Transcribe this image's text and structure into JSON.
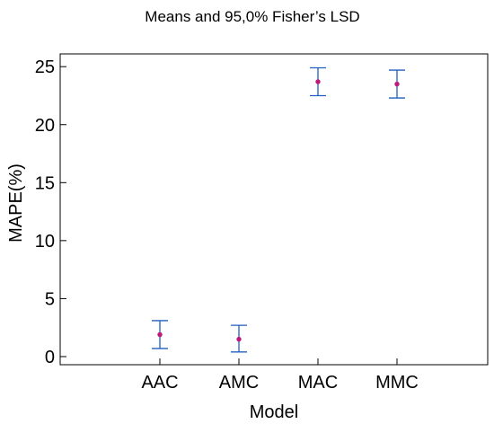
{
  "chart_data": {
    "type": "scatter",
    "title": "Means and 95,0% Fisher’s LSD",
    "xlabel": "Model",
    "ylabel": "MAPE(%)",
    "categories": [
      "AAC",
      "AMC",
      "MAC",
      "MMC"
    ],
    "series": [
      {
        "means": [
          1.9,
          1.5,
          23.7,
          23.5
        ],
        "lower": [
          0.7,
          0.4,
          22.5,
          22.3
        ],
        "upper": [
          3.1,
          2.7,
          24.9,
          24.7
        ]
      }
    ],
    "yticks": [
      0,
      5,
      10,
      15,
      20,
      25
    ],
    "ylim": [
      -0.7,
      26.1
    ],
    "grid": false,
    "colors": {
      "errorbar": "#1f5fbf",
      "mean": "#c0187a",
      "axis": "#000000"
    }
  }
}
